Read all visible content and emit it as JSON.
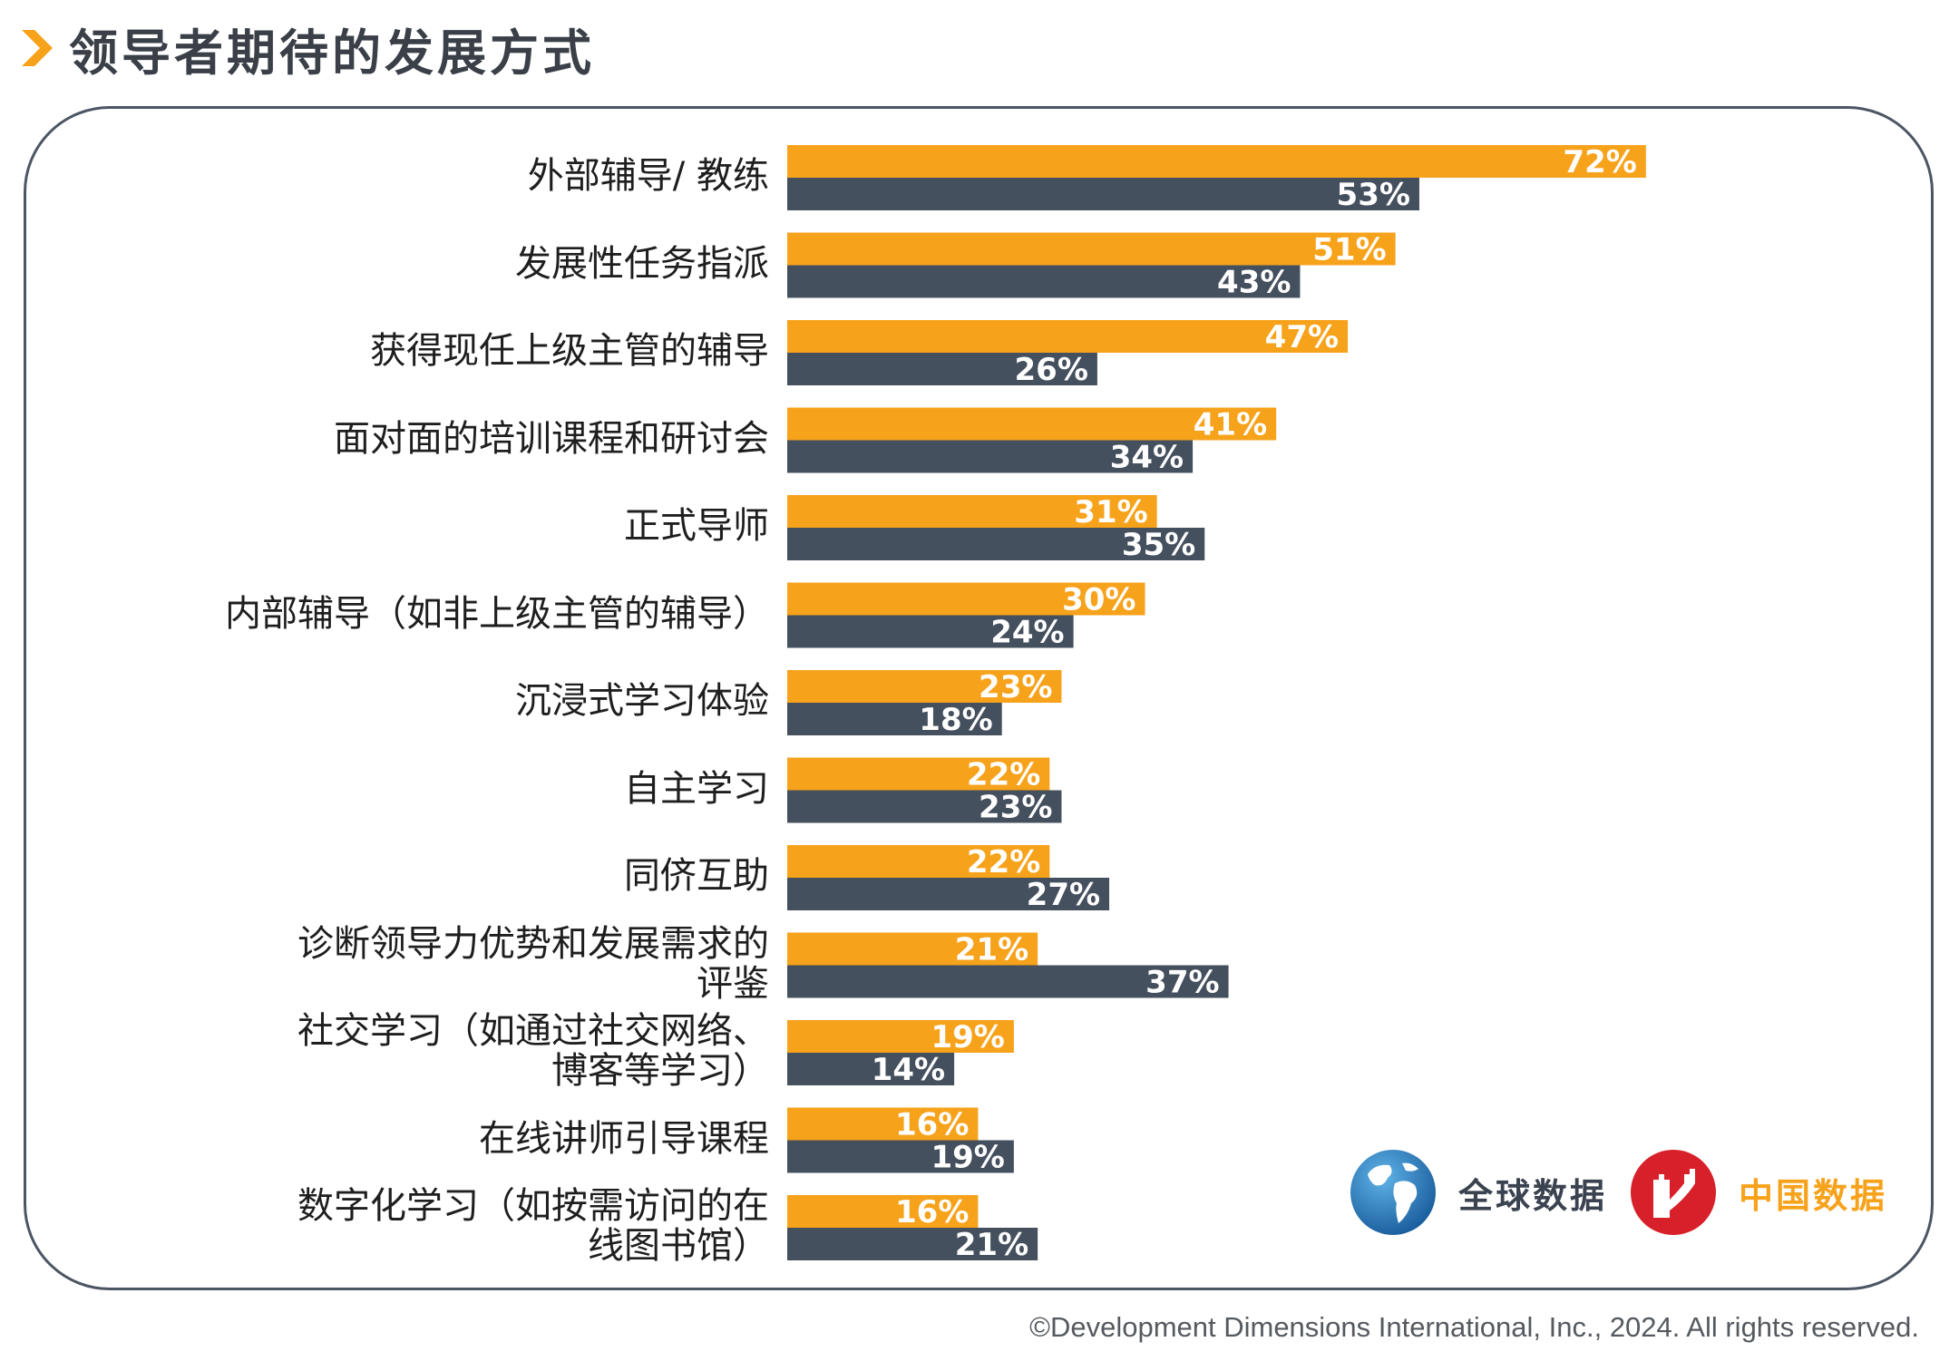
{
  "header": {
    "title": "领导者期待的发展方式"
  },
  "colors": {
    "orange": "#F7A21B",
    "slate": "#45505E",
    "china_red": "#D7202A",
    "globe_blue": "#2A7DC0"
  },
  "chart_data": {
    "type": "bar",
    "orientation": "horizontal",
    "xlim": [
      0,
      80
    ],
    "categories": [
      "外部辅导/ 教练",
      "发展性任务指派",
      "获得现任上级主管的辅导",
      "面对面的培训课程和研讨会",
      "正式导师",
      "内部辅导（如非上级主管的辅导）",
      "沉浸式学习体验",
      "自主学习",
      "同侪互助",
      "诊断领导力优势和发展需求的\n评鉴",
      "社交学习（如通过社交网络、\n博客等学习）",
      "在线讲师引导课程",
      "数字化学习（如按需访问的在\n线图书馆）"
    ],
    "series": [
      {
        "name": "中国数据",
        "color": "#F7A21B",
        "values": [
          72,
          51,
          47,
          41,
          31,
          30,
          23,
          22,
          22,
          21,
          19,
          16,
          16
        ]
      },
      {
        "name": "全球数据",
        "color": "#45505E",
        "values": [
          53,
          43,
          26,
          34,
          35,
          24,
          18,
          23,
          27,
          37,
          14,
          19,
          21
        ]
      }
    ],
    "value_suffix": "%",
    "legend_position": "bottom-right"
  },
  "legend": {
    "global_label": "全球数据",
    "china_label": "中国数据"
  },
  "footer": {
    "copyright": "©Development Dimensions International, Inc., 2024. All rights reserved."
  }
}
